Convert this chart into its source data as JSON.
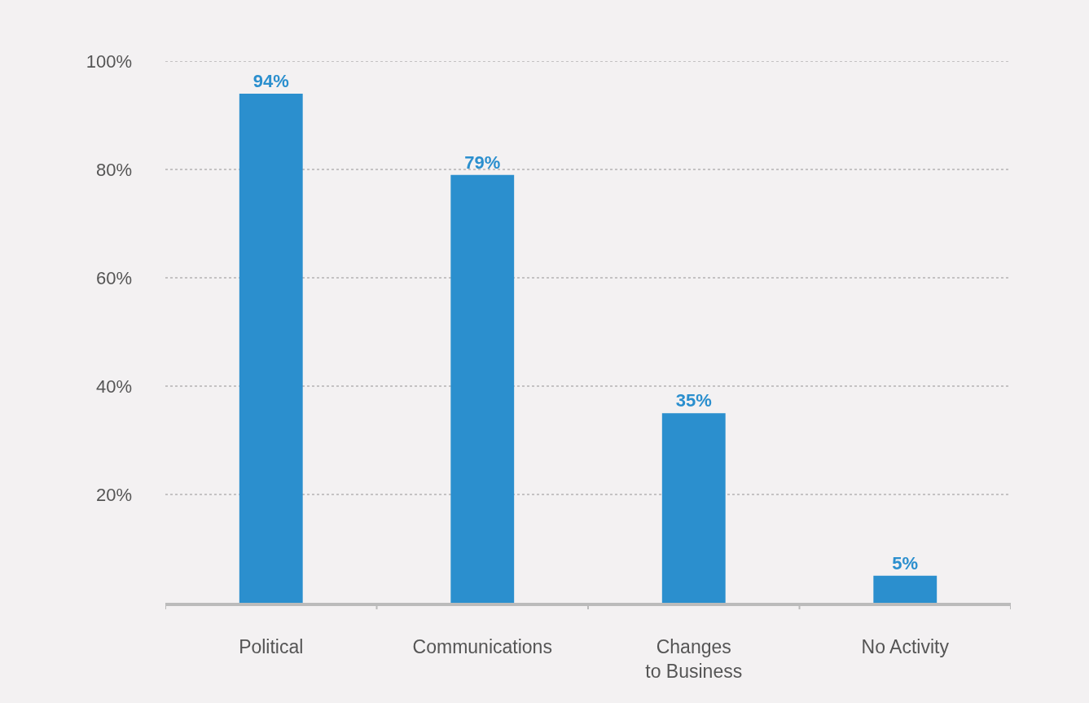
{
  "chart_data": {
    "type": "bar",
    "categories": [
      "Political",
      "Communications",
      "Changes to Business",
      "No Activity"
    ],
    "values": [
      94,
      79,
      35,
      5
    ],
    "color": "#2b8fce",
    "value_labels": [
      "94%",
      "79%",
      "35%",
      "5%"
    ],
    "ylim": [
      0,
      100
    ],
    "yticks": [
      {
        "value": 20,
        "label": "20%"
      },
      {
        "value": 40,
        "label": "40%"
      },
      {
        "value": 60,
        "label": "60%"
      },
      {
        "value": 80,
        "label": "80%"
      },
      {
        "value": 100,
        "label": "100%"
      }
    ],
    "grid": "y",
    "legend": false
  }
}
